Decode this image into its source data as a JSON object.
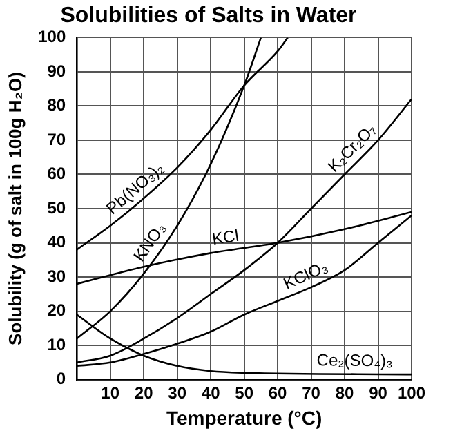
{
  "chart_data": {
    "type": "line",
    "title": "Solubilities of Salts in Water",
    "xlabel": "Temperature (°C)",
    "ylabel": "Solubility (g of salt in 100g H₂O)",
    "xlim": [
      0,
      100
    ],
    "xticks": [
      {
        "value": 0,
        "label": null
      },
      10,
      20,
      30,
      40,
      50,
      60,
      70,
      80,
      90,
      100
    ],
    "ylim": [
      0,
      100
    ],
    "yticks": [
      0,
      10,
      20,
      30,
      40,
      50,
      60,
      70,
      80,
      90,
      100
    ],
    "grid": true,
    "legend": false,
    "marker": "none",
    "line_style": "solid",
    "series": [
      {
        "color": "#000000",
        "x": [
          0,
          10,
          20,
          30,
          40,
          50,
          60,
          63
        ],
        "values": [
          38,
          45,
          53,
          62,
          73,
          86,
          96,
          100
        ]
      },
      {
        "color": "#000000",
        "x": [
          0,
          10,
          20,
          30,
          40,
          50,
          55
        ],
        "values": [
          12,
          20,
          31,
          45,
          63,
          86,
          100
        ]
      },
      {
        "color": "#000000",
        "x": [
          0,
          20,
          40,
          60,
          80,
          100
        ],
        "values": [
          28,
          33,
          37,
          40,
          44,
          49
        ]
      },
      {
        "color": "#000000",
        "x": [
          0,
          10,
          20,
          30,
          40,
          50,
          60,
          70,
          80,
          90,
          100
        ],
        "values": [
          5,
          7,
          12,
          18,
          25,
          32,
          40,
          50,
          60,
          70,
          82
        ]
      },
      {
        "color": "#000000",
        "x": [
          0,
          10,
          20,
          30,
          40,
          50,
          60,
          70,
          80,
          90,
          100
        ],
        "values": [
          4,
          5,
          7.5,
          10.5,
          14,
          19,
          23,
          27,
          32,
          40,
          48
        ]
      },
      {
        "color": "#000000",
        "x": [
          0,
          10,
          20,
          30,
          40,
          50,
          100
        ],
        "values": [
          19,
          12,
          7,
          4,
          2.5,
          2,
          1.5
        ]
      }
    ],
    "annotations": [
      {
        "text": "Pb(NO₃)₂",
        "x": 20,
        "y": 53
      },
      {
        "text": "KNO₃",
        "x": 25,
        "y": 38
      },
      {
        "text": "KCl",
        "x": 45,
        "y": 37.75
      },
      {
        "text": "K₂Cr₂O₇",
        "x": 85,
        "y": 65
      },
      {
        "text": "KClO₃",
        "x": 70,
        "y": 27
      },
      {
        "text": "Ce₂(SO₄)₃",
        "x": 83,
        "y": 1.7
      }
    ]
  }
}
